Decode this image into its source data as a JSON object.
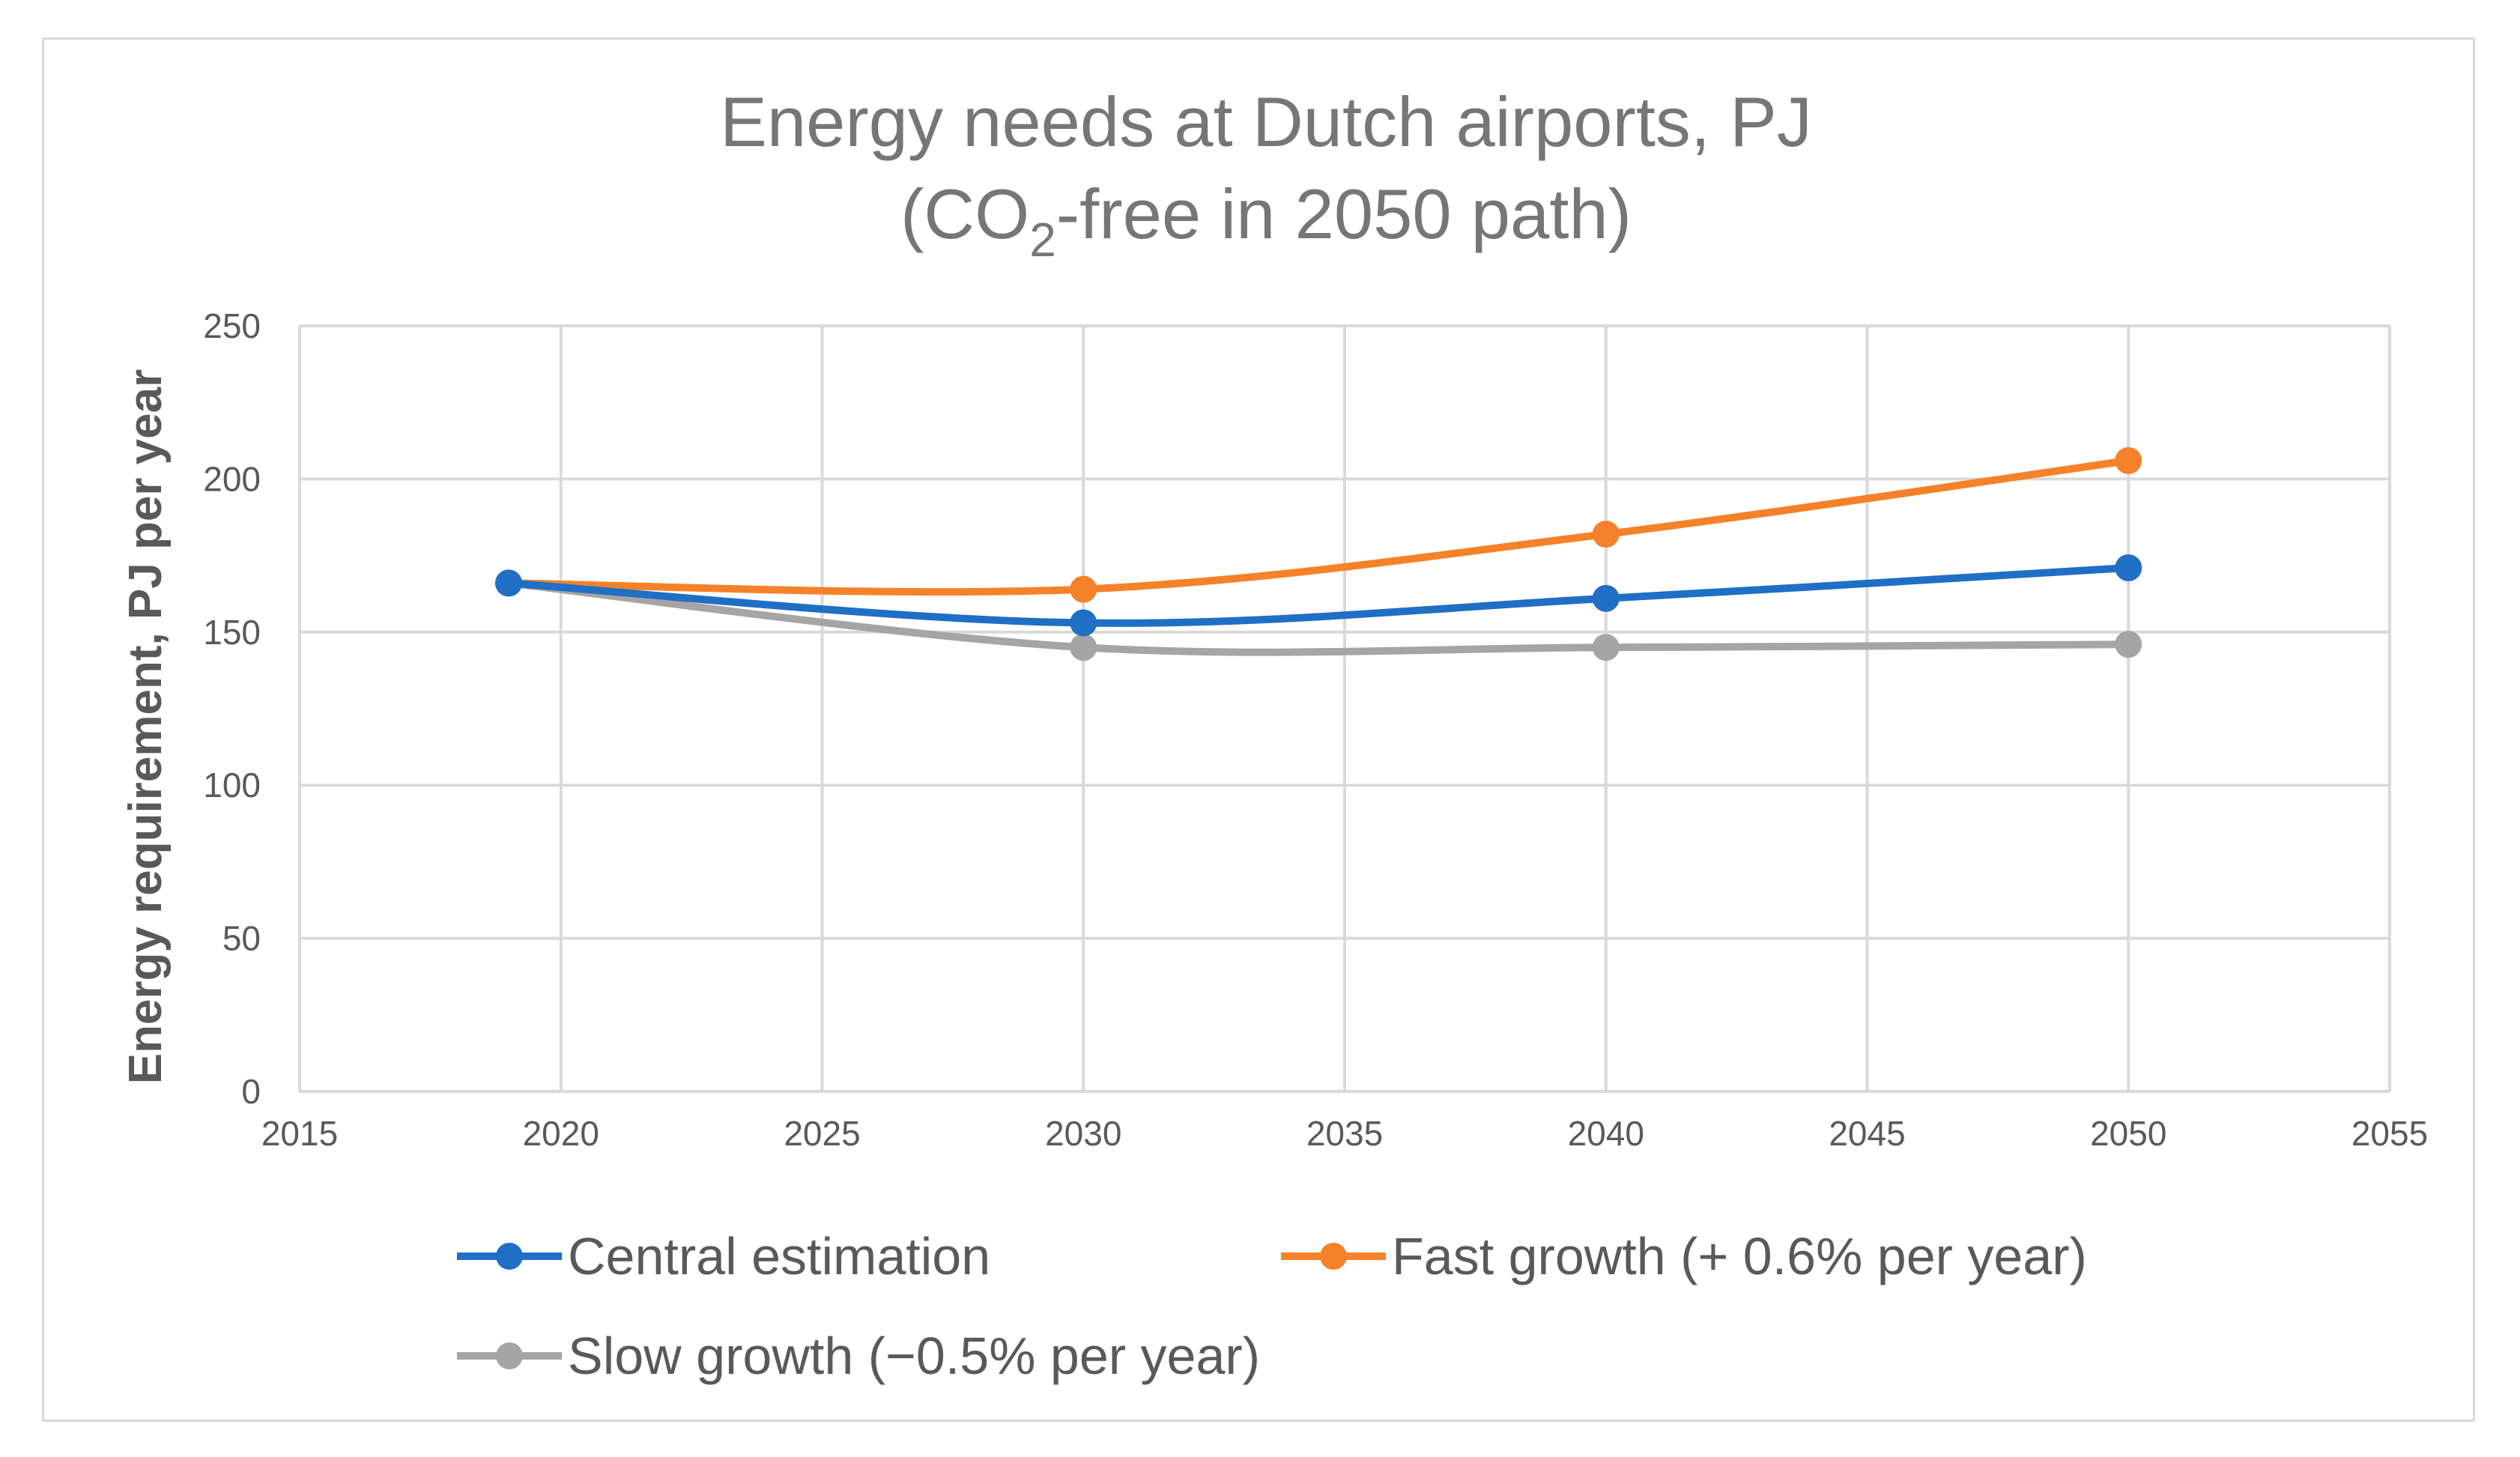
{
  "chart_data": {
    "type": "line",
    "title_line1": "Energy needs at Dutch airports, PJ",
    "title_line2_prefix": "(CO",
    "title_line2_subscript": "2",
    "title_line2_suffix": "-free in 2050 path)",
    "xlabel": "",
    "ylabel": "Energy requirement, PJ per year",
    "xlim": [
      2015,
      2055
    ],
    "ylim": [
      0,
      250
    ],
    "x_ticks": [
      2015,
      2020,
      2025,
      2030,
      2035,
      2040,
      2045,
      2050,
      2055
    ],
    "y_ticks": [
      0,
      50,
      100,
      150,
      200,
      250
    ],
    "grid": true,
    "smooth": true,
    "legend_position": "bottom",
    "series": [
      {
        "name": "Central estimation",
        "color": "#1f6fc5",
        "x": [
          2019,
          2030,
          2040,
          2050
        ],
        "values": [
          166,
          153,
          161,
          171
        ]
      },
      {
        "name": "Fast growth (+ 0.6% per year)",
        "color": "#f5822a",
        "x": [
          2019,
          2030,
          2040,
          2050
        ],
        "values": [
          166,
          164,
          182,
          206
        ]
      },
      {
        "name": "Slow growth (−0.5% per year)",
        "color": "#a5a5a5",
        "x": [
          2019,
          2030,
          2040,
          2050
        ],
        "values": [
          166,
          145,
          145,
          146
        ]
      }
    ]
  }
}
